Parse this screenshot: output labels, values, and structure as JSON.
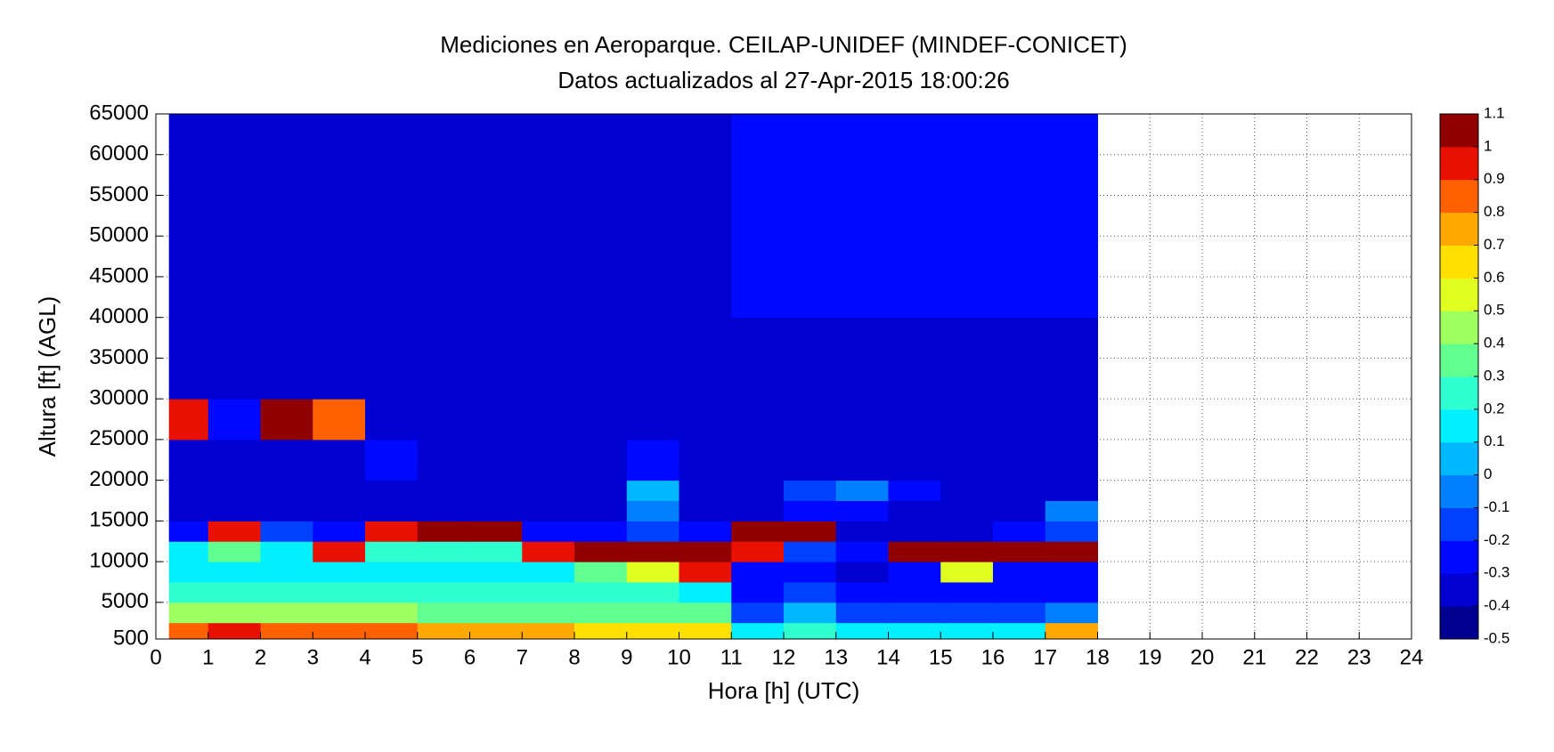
{
  "chart_data": {
    "type": "heatmap",
    "title": "Mediciones en Aeroparque. CEILAP-UNIDEF (MINDEF-CONICET)",
    "subtitle": "Datos actualizados al 27-Apr-2015 18:00:26",
    "xlabel": "Hora [h] (UTC)",
    "ylabel": "Altura [ft] (AGL)",
    "x_bins": [
      0.25,
      1,
      2,
      3,
      4,
      5,
      6,
      7,
      8,
      9,
      10,
      11,
      12,
      13,
      14,
      15,
      16,
      17,
      18
    ],
    "y_bins": [
      500,
      2500,
      5000,
      7500,
      10000,
      12500,
      15000,
      17500,
      20000,
      25000,
      30000,
      40000,
      50000,
      65000
    ],
    "values": [
      [
        0.8,
        0.9,
        0.8,
        0.8,
        0.8,
        0.7,
        0.7,
        0.7,
        0.6,
        0.6,
        0.6,
        0.1,
        0.2,
        0.1,
        0.1,
        0.1,
        0.1,
        0.7
      ],
      [
        0.4,
        0.4,
        0.4,
        0.4,
        0.4,
        0.3,
        0.3,
        0.3,
        0.3,
        0.3,
        0.3,
        -0.2,
        0.0,
        -0.2,
        -0.2,
        -0.2,
        -0.2,
        -0.1
      ],
      [
        0.2,
        0.2,
        0.2,
        0.2,
        0.2,
        0.2,
        0.2,
        0.2,
        0.2,
        0.2,
        0.1,
        -0.3,
        -0.2,
        -0.3,
        -0.3,
        -0.3,
        -0.3,
        -0.3
      ],
      [
        0.1,
        0.1,
        0.1,
        0.1,
        0.1,
        0.1,
        0.1,
        0.1,
        0.3,
        0.5,
        0.9,
        -0.3,
        -0.3,
        -0.4,
        -0.3,
        0.5,
        -0.3,
        -0.3
      ],
      [
        0.1,
        0.3,
        0.1,
        0.9,
        0.2,
        0.2,
        0.2,
        0.9,
        1.0,
        1.0,
        1.0,
        0.9,
        -0.2,
        -0.3,
        1.0,
        1.0,
        1.0,
        1.0
      ],
      [
        -0.3,
        0.9,
        -0.2,
        -0.3,
        0.9,
        1.0,
        1.0,
        -0.3,
        -0.3,
        -0.2,
        -0.3,
        1.0,
        1.0,
        -0.4,
        -0.4,
        -0.4,
        -0.3,
        -0.2
      ],
      [
        -0.4,
        -0.4,
        -0.4,
        -0.4,
        -0.4,
        -0.4,
        -0.4,
        -0.4,
        -0.4,
        -0.1,
        -0.4,
        -0.4,
        -0.3,
        -0.3,
        -0.4,
        -0.4,
        -0.4,
        -0.1
      ],
      [
        -0.4,
        -0.4,
        -0.4,
        -0.4,
        -0.4,
        -0.4,
        -0.4,
        -0.4,
        -0.4,
        0.0,
        -0.4,
        -0.4,
        -0.2,
        -0.1,
        -0.3,
        -0.4,
        -0.4,
        -0.4
      ],
      [
        -0.4,
        -0.4,
        -0.4,
        -0.4,
        -0.3,
        -0.4,
        -0.4,
        -0.4,
        -0.4,
        -0.3,
        -0.4,
        -0.4,
        -0.4,
        -0.4,
        -0.4,
        -0.4,
        -0.4,
        -0.4
      ],
      [
        0.9,
        -0.3,
        1.0,
        0.8,
        -0.4,
        -0.4,
        -0.4,
        -0.4,
        -0.4,
        -0.4,
        -0.4,
        -0.4,
        -0.4,
        -0.4,
        -0.4,
        -0.4,
        -0.4,
        -0.4
      ],
      [
        -0.4,
        -0.4,
        -0.4,
        -0.4,
        -0.4,
        -0.4,
        -0.4,
        -0.4,
        -0.4,
        -0.4,
        -0.4,
        -0.4,
        -0.4,
        -0.4,
        -0.4,
        -0.4,
        -0.4,
        -0.4
      ],
      [
        -0.4,
        -0.4,
        -0.4,
        -0.4,
        -0.4,
        -0.4,
        -0.4,
        -0.4,
        -0.4,
        -0.4,
        -0.4,
        -0.3,
        -0.3,
        -0.3,
        -0.3,
        -0.3,
        -0.3,
        -0.3
      ],
      [
        -0.4,
        -0.4,
        -0.4,
        -0.4,
        -0.4,
        -0.4,
        -0.4,
        -0.4,
        -0.4,
        -0.4,
        -0.4,
        -0.3,
        -0.3,
        -0.3,
        -0.3,
        -0.3,
        -0.3,
        -0.3
      ]
    ],
    "xlim": [
      0,
      24
    ],
    "xticks": [
      0,
      1,
      2,
      3,
      4,
      5,
      6,
      7,
      8,
      9,
      10,
      11,
      12,
      13,
      14,
      15,
      16,
      17,
      18,
      19,
      20,
      21,
      22,
      23,
      24
    ],
    "ylim": [
      500,
      65000
    ],
    "yticks": [
      500,
      5000,
      10000,
      15000,
      20000,
      25000,
      30000,
      35000,
      40000,
      45000,
      50000,
      55000,
      60000,
      65000
    ],
    "zlim": [
      -0.5,
      1.1
    ],
    "zticks": [
      -0.5,
      -0.4,
      -0.3,
      -0.2,
      -0.1,
      0,
      0.1,
      0.2,
      0.3,
      0.4,
      0.5,
      0.6,
      0.7,
      0.8,
      0.9,
      1,
      1.1
    ],
    "colors": [
      "#000090",
      "#0000d0",
      "#0008ff",
      "#0040ff",
      "#0080ff",
      "#00b8ff",
      "#00f0ff",
      "#30ffd0",
      "#60ff90",
      "#a0ff60",
      "#e0ff20",
      "#ffe000",
      "#ffa800",
      "#ff6000",
      "#e81000",
      "#900000"
    ],
    "grid": true
  }
}
